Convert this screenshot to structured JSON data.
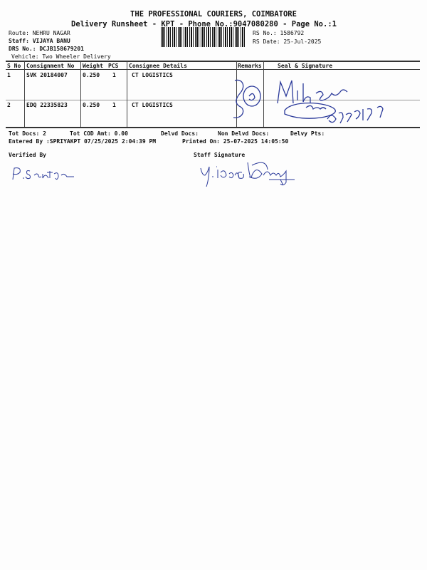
{
  "header": {
    "company": "THE PROFESSIONAL COURIERS, COIMBATORE",
    "subtitle": "Delivery Runsheet - KPT - Phone No.:9047080280 - Page No.:1"
  },
  "info": {
    "route": "Route: NEHRU NAGAR",
    "staff": "Staff: VIJAYA BANU",
    "drs": "DRS No.: DCJB158679201",
    "vehicle": "Vehicle: Two Wheeler Delivery",
    "rs_no": "RS No.: 1586792",
    "rs_date": "RS Date: 25-Jul-2025"
  },
  "table": {
    "headers": [
      "S No",
      "Consignment No",
      "Weight",
      "PCS",
      "Consignee Details",
      "Remarks",
      "Seal & Signature"
    ],
    "rows": [
      {
        "sno": "1",
        "consignment": "SVK 20184007",
        "weight": "0.250",
        "pcs": "1",
        "consignee": "CT LOGISTICS"
      },
      {
        "sno": "2",
        "consignment": "EDQ 22335823",
        "weight": "0.250",
        "pcs": "1",
        "consignee": "CT LOGISTICS"
      }
    ]
  },
  "summary": {
    "tot_docs": "Tot Docs:   2",
    "tot_cod": "Tot COD Amt:     0.00",
    "delvd": "Delvd Docs:",
    "non_delvd": "Non Delvd Docs:",
    "delvy_pts": "Delvy Pts:"
  },
  "entered": {
    "entered_by": "Entered By :SPRIYAKPT 07/25/2025 2:04:39 PM",
    "printed_on": "Printed On: 25-07-2025 14:05:50"
  },
  "footer": {
    "verified_by": "Verified By",
    "staff_signature": "Staff Signature"
  },
  "colors": {
    "ink": "#111111",
    "signature": "#2b3a9a"
  }
}
